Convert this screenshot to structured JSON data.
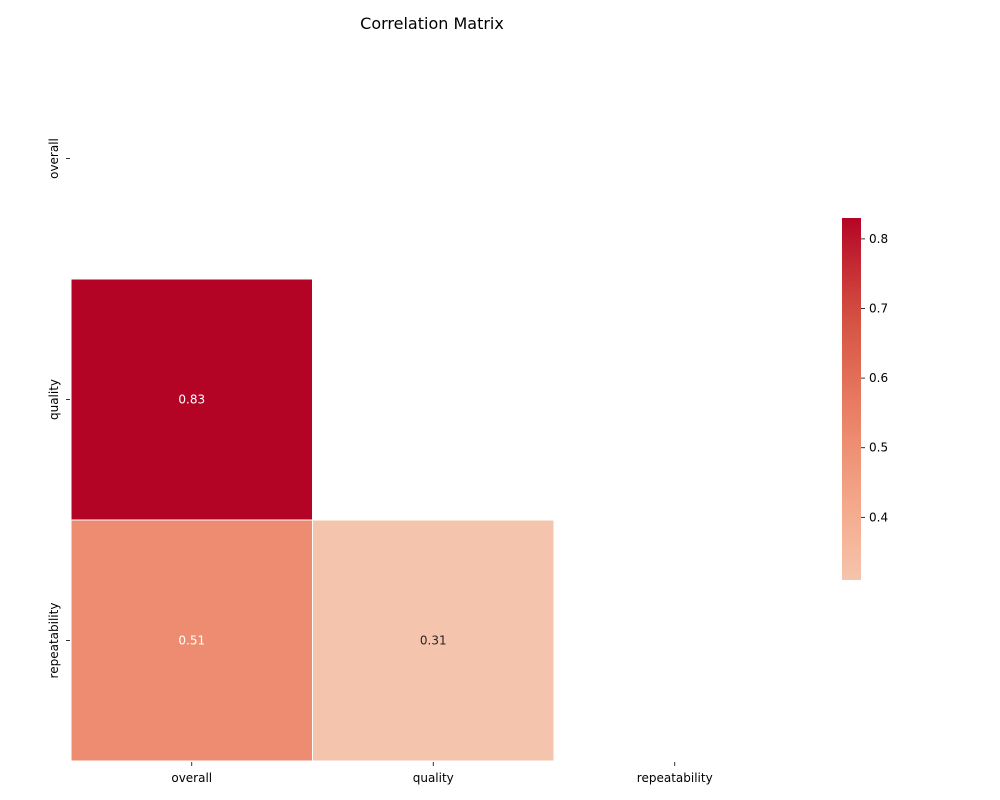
{
  "chart_data": {
    "type": "heatmap",
    "title": "Correlation Matrix",
    "xlabel": "",
    "ylabel": "",
    "rows": [
      "overall",
      "quality",
      "repeatability"
    ],
    "columns": [
      "overall",
      "quality",
      "repeatability"
    ],
    "mask": "upper-triangle-including-diagonal",
    "cells": [
      {
        "row": "quality",
        "col": "overall",
        "value": 0.83,
        "label": "0.83"
      },
      {
        "row": "repeatability",
        "col": "overall",
        "value": 0.51,
        "label": "0.51"
      },
      {
        "row": "repeatability",
        "col": "quality",
        "value": 0.31,
        "label": "0.31"
      }
    ],
    "colormap": "coolwarm",
    "color_range": [
      0.31,
      0.83
    ],
    "colorbar": {
      "ticks": [
        0.4,
        0.5,
        0.6,
        0.7,
        0.8
      ],
      "tick_labels": [
        "0.4",
        "0.5",
        "0.6",
        "0.7",
        "0.8"
      ],
      "placement": "right"
    },
    "grid": false
  }
}
